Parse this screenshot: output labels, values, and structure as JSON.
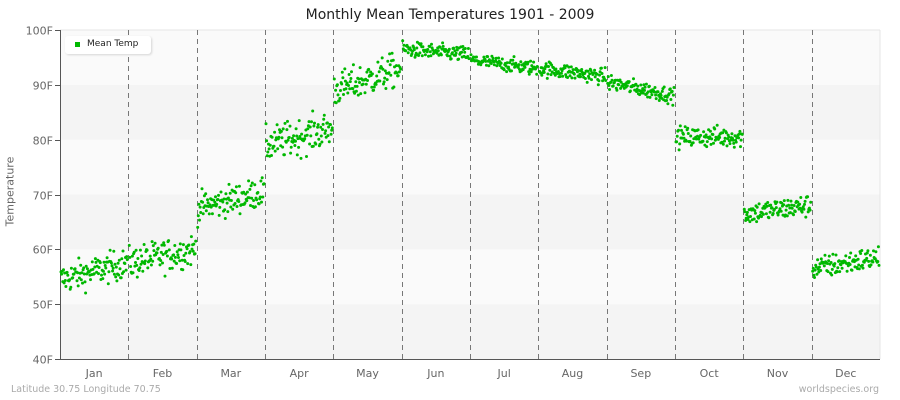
{
  "chart_data": {
    "type": "scatter",
    "title": "Monthly Mean Temperatures 1901 - 2009",
    "xlabel": "",
    "ylabel": "Temperature",
    "ylim": [
      40,
      100
    ],
    "yticks": [
      "40F",
      "50F",
      "60F",
      "70F",
      "80F",
      "90F",
      "100F"
    ],
    "categories": [
      "Jan",
      "Feb",
      "Mar",
      "Apr",
      "May",
      "Jun",
      "Jul",
      "Aug",
      "Sep",
      "Oct",
      "Nov",
      "Dec"
    ],
    "grid": "alternating horizontal bands, dashed vertical month separators",
    "legend": {
      "position": "top-left",
      "entries": [
        "Mean Temp"
      ]
    },
    "series": [
      {
        "name": "Mean Temp",
        "color": "#00b800",
        "points_per_month": 109,
        "monthly_start": [
          54.5,
          57.5,
          67.5,
          79,
          89,
          96.5,
          94.5,
          93,
          90.5,
          80.5,
          66.5,
          56.5
        ],
        "monthly_end": [
          57.5,
          60,
          70.5,
          82,
          93,
          95.5,
          93,
          91.5,
          88,
          80.5,
          68,
          58.5
        ],
        "monthly_spread": [
          2.3,
          2.5,
          2.3,
          2.7,
          2.6,
          1.2,
          1.1,
          1.2,
          1.2,
          1.6,
          1.7,
          1.8
        ],
        "monthly_min": [
          49,
          52,
          64,
          71,
          84,
          93,
          88,
          88,
          86,
          75,
          61,
          51
        ],
        "monthly_max": [
          60,
          67,
          76,
          90,
          98,
          100,
          97,
          96,
          92,
          85,
          72,
          63
        ]
      }
    ]
  },
  "footer": {
    "location": "Latitude 30.75 Longitude 70.75",
    "source": "worldspecies.org"
  }
}
